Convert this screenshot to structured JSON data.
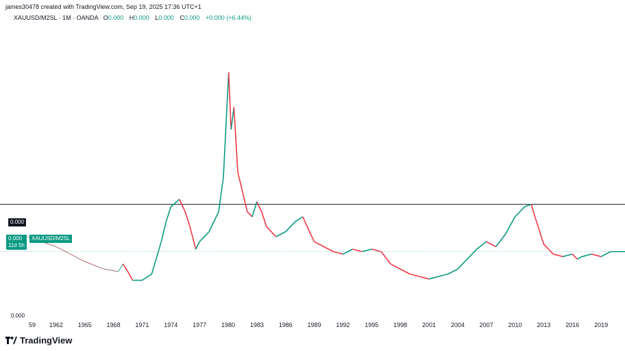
{
  "header": {
    "credit": "james30478 created with TradingView.com, Sep 19, 2025 17:36 UTC+1"
  },
  "legend": {
    "symbol": "XAUUSD/M2SL · 1M · OANDA",
    "o_label": "O",
    "o_value": "0.000",
    "h_label": "H",
    "h_value": "0.000",
    "l_label": "L",
    "l_value": "0.000",
    "c_label": "C",
    "c_value": "0.000",
    "change": "+0.000 (+6.44%)"
  },
  "price_tags": {
    "line_value": "0.000",
    "last_value": "0.000",
    "last_countdown": "11d 5h",
    "series_name": "XAUUSD/M2SL",
    "axis_bottom": "0.000"
  },
  "brand": {
    "name": "TradingView"
  },
  "colors": {
    "up": "#089981",
    "down": "#f23645",
    "line": "#089981",
    "hline": "#131722"
  },
  "chart_data": {
    "type": "line",
    "xlabel": "",
    "ylabel": "",
    "x_tick_labels": [
      "59",
      "1962",
      "1965",
      "1968",
      "1971",
      "1974",
      "1977",
      "1980",
      "1983",
      "1986",
      "1989",
      "1992",
      "1995",
      "1998",
      "2001",
      "2004",
      "2007",
      "2010",
      "2013",
      "2016",
      "2019"
    ],
    "x_range": [
      1959,
      2021.5
    ],
    "y_range": [
      0,
      100
    ],
    "horizontal_line": 35,
    "series": [
      {
        "x": [
          1959,
          1962,
          1965,
          1967,
          1968.5,
          1969,
          1969.5,
          1970,
          1971,
          1972,
          1973,
          1973.5,
          1974,
          1974.9,
          1975.5,
          1976,
          1976.6,
          1977,
          1978,
          1979,
          1979.5,
          1980.05,
          1980.3,
          1980.6,
          1981,
          1981.5,
          1982,
          1982.5,
          1983,
          1983.5,
          1984,
          1985,
          1986,
          1987,
          1987.8,
          1988.5,
          1989,
          1990,
          1991,
          1992,
          1993,
          1994,
          1995,
          1996,
          1997,
          1998,
          1999,
          2000,
          2001,
          2002,
          2003,
          2004,
          2005,
          2006,
          2007,
          2008,
          2009,
          2010,
          2011,
          2011.7,
          2012,
          2012.5,
          2013,
          2013.5,
          2014,
          2015,
          2016,
          2016.5,
          2017,
          2018,
          2019,
          2020,
          2021.5
        ],
        "y": [
          22,
          18,
          12,
          9,
          8,
          11,
          8,
          4.5,
          4.5,
          7,
          20,
          28,
          34,
          37,
          32,
          26,
          17,
          20,
          24,
          32,
          46,
          88,
          65,
          74,
          48,
          40,
          32,
          30,
          36,
          32,
          26,
          22,
          24,
          28,
          30,
          24,
          20,
          18,
          16,
          15,
          17,
          16,
          17,
          16,
          11,
          9,
          7,
          6,
          5,
          6,
          7,
          9,
          13,
          17,
          20,
          18,
          23,
          30,
          34,
          35,
          31,
          25,
          19,
          17,
          15,
          14,
          15,
          13,
          14,
          15,
          14,
          16,
          16
        ]
      }
    ]
  }
}
